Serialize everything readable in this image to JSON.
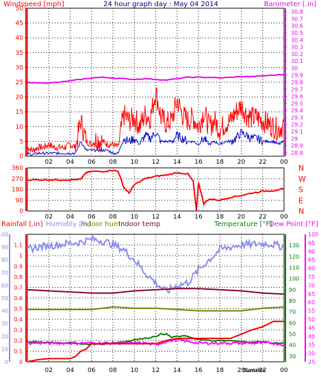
{
  "colors": {
    "wind": "#ff0000",
    "gust": "#ff0000",
    "avg_wind": "#0000cc",
    "barometer": "#ee00ee",
    "direction": "#ff0000",
    "rain_axis": "#ff0000",
    "humidity": "#8c8cf0",
    "indoor_hum": "#808000",
    "indoor_temp": "#8b0030",
    "temperature": "#008000",
    "dewpoint": "#ff00ff",
    "rainfall": "#ee0000",
    "sun": "#ffff99",
    "grid": "#000000",
    "title": "#000080"
  },
  "chart_data": [
    {
      "type": "line",
      "title": "24 hour graph day : May 04 2014",
      "xlabel": "",
      "ylabel": "Windspeed [mph]",
      "y2label": "Barometer [.in]",
      "x_ticks": [
        "02",
        "04",
        "06",
        "08",
        "10",
        "12",
        "14",
        "16",
        "18",
        "20",
        "22",
        "00"
      ],
      "ylim": [
        0,
        50
      ],
      "y_ticks": [
        "0",
        "5",
        "10",
        "15",
        "20",
        "25",
        "30",
        "35",
        "40",
        "45",
        "50"
      ],
      "y2lim": [
        28.75,
        30.85
      ],
      "y2_ticks": [
        "28.8",
        "28.9",
        "29",
        "29.1",
        "29.2",
        "29.3",
        "29.4",
        "29.5",
        "29.6",
        "29.7",
        "29.8",
        "29.9",
        "30",
        "30.1",
        "30.2",
        "30.3",
        "30.4",
        "30.5",
        "30.6",
        "30.7",
        "30.8"
      ],
      "series": [
        {
          "name": "Wind gust",
          "x": [
            0,
            0.5,
            1,
            1.5,
            2,
            2.5,
            3,
            3.5,
            4,
            4.5,
            5,
            5.5,
            6,
            6.5,
            7,
            7.5,
            8,
            8.5,
            9,
            9.5,
            10,
            10.5,
            11,
            11.5,
            12,
            12.5,
            13,
            13.5,
            14,
            14.5,
            15,
            15.5,
            16,
            16.5,
            17,
            17.5,
            18,
            18.5,
            19,
            19.5,
            20,
            20.5,
            21,
            21.5,
            22,
            22.5,
            23,
            23.5,
            24
          ],
          "values": [
            3,
            2,
            3,
            3,
            4,
            3,
            3,
            3,
            4,
            3,
            12,
            5,
            4,
            6,
            5,
            4,
            4,
            3,
            14,
            12,
            13,
            10,
            14,
            13,
            22,
            13,
            11,
            12,
            19,
            14,
            12,
            13,
            10,
            15,
            10,
            12,
            9,
            11,
            12,
            15,
            17,
            14,
            13,
            13,
            12,
            11,
            10,
            9,
            11
          ]
        },
        {
          "name": "Average wind",
          "x": [
            0,
            0.5,
            1,
            1.5,
            2,
            2.5,
            3,
            3.5,
            4,
            4.5,
            5,
            5.5,
            6,
            6.5,
            7,
            7.5,
            8,
            8.5,
            9,
            9.5,
            10,
            10.5,
            11,
            11.5,
            12,
            12.5,
            13,
            13.5,
            14,
            14.5,
            15,
            15.5,
            16,
            16.5,
            17,
            17.5,
            18,
            18.5,
            19,
            19.5,
            20,
            20.5,
            21,
            21.5,
            22,
            22.5,
            23,
            23.5,
            24
          ],
          "values": [
            1,
            0.5,
            1,
            1,
            1,
            1,
            1,
            1,
            1,
            1,
            5,
            2,
            2,
            2,
            2,
            2,
            1,
            1,
            6,
            5,
            6,
            4,
            7,
            6,
            8,
            5,
            5,
            5,
            7,
            6,
            5,
            5,
            4,
            6,
            4,
            5,
            4,
            5,
            5,
            6,
            8,
            7,
            6,
            6,
            5,
            5,
            5,
            4,
            5
          ]
        },
        {
          "name": "Barometer",
          "axis": "y2",
          "x": [
            0,
            1,
            2,
            3,
            4,
            5,
            6,
            7,
            8,
            9,
            10,
            11,
            12,
            13,
            14,
            15,
            16,
            17,
            18,
            19,
            20,
            21,
            22,
            23,
            24
          ],
          "values": [
            29.8,
            29.79,
            29.79,
            29.8,
            29.82,
            29.84,
            29.86,
            29.87,
            29.86,
            29.85,
            29.84,
            29.85,
            29.84,
            29.83,
            29.85,
            29.87,
            29.87,
            29.87,
            29.86,
            29.87,
            29.88,
            29.88,
            29.89,
            29.9,
            29.91
          ]
        }
      ]
    },
    {
      "type": "line",
      "title": "",
      "ylabel": "",
      "x_ticks": [
        "02",
        "04",
        "06",
        "08",
        "10",
        "12",
        "14",
        "16",
        "18",
        "20",
        "22",
        "00"
      ],
      "ylim": [
        0,
        360
      ],
      "y_ticks": [
        "0",
        "90",
        "180",
        "270",
        "360"
      ],
      "compass_labels": [
        "N",
        "W",
        "S",
        "E",
        "N"
      ],
      "series": [
        {
          "name": "Wind direction",
          "x": [
            0,
            1,
            2,
            3,
            4,
            5,
            5.5,
            6,
            7,
            8,
            8.5,
            9,
            9.5,
            10,
            11,
            12,
            13,
            14,
            15,
            15.5,
            15.8,
            16,
            16.5,
            17,
            18,
            19,
            20,
            21,
            22,
            23,
            24
          ],
          "values": [
            260,
            260,
            260,
            260,
            260,
            265,
            320,
            330,
            330,
            340,
            330,
            200,
            150,
            220,
            270,
            290,
            300,
            320,
            310,
            250,
            5,
            240,
            60,
            100,
            90,
            115,
            130,
            150,
            165,
            170,
            185
          ]
        }
      ]
    },
    {
      "type": "line",
      "title": "",
      "legend": [
        "Rainfall [.in]",
        "Humidity [%]",
        "Indoor hum",
        "Indoor temp",
        "Temperature [°F]",
        "Dew Point [°F]"
      ],
      "x_ticks": [
        "02",
        "04",
        "06",
        "08",
        "10",
        "12",
        "14",
        "16",
        "18",
        "20",
        "22",
        "00"
      ],
      "sun_labels": [
        "Sunset",
        "Sunrise"
      ],
      "rain_axis": {
        "ylim": [
          0,
          1.2
        ],
        "ticks": [
          "0",
          "0.1",
          "0.2",
          "0.3",
          "0.4",
          "0.5",
          "0.6",
          "0.7",
          "0.8",
          "0.9",
          "1",
          "1.1"
        ]
      },
      "humidity_axis": {
        "ylim": [
          0,
          100
        ],
        "ticks": [
          "0",
          "10",
          "20",
          "30",
          "40",
          "50",
          "60",
          "70",
          "80",
          "90",
          "100"
        ]
      },
      "temp_axis_right": {
        "ylim": [
          25,
          140
        ],
        "ticks": [
          "30",
          "40",
          "50",
          "60",
          "70",
          "80",
          "90",
          "100",
          "110",
          "120",
          "130"
        ]
      },
      "dew_axis_right": {
        "ylim": [
          25,
          100
        ],
        "ticks": [
          "25",
          "30",
          "35",
          "40",
          "45",
          "50",
          "55",
          "60",
          "65",
          "70",
          "75",
          "80",
          "85",
          "90",
          "95",
          "100"
        ]
      },
      "series": [
        {
          "name": "Humidity",
          "axis": "humidity",
          "x": [
            0,
            1,
            2,
            3,
            4,
            5,
            6,
            7,
            8,
            9,
            10,
            11,
            12,
            13,
            14,
            15,
            16,
            17,
            18,
            19,
            20,
            21,
            22,
            23,
            24
          ],
          "values": [
            88,
            90,
            91,
            92,
            93,
            94,
            96,
            95,
            92,
            88,
            80,
            70,
            62,
            55,
            60,
            62,
            72,
            80,
            88,
            90,
            92,
            92,
            93,
            92,
            90
          ]
        },
        {
          "name": "Indoor hum",
          "axis": "humidity",
          "x": [
            0,
            2,
            4,
            6,
            8,
            10,
            12,
            14,
            16,
            18,
            20,
            22,
            24
          ],
          "values": [
            41,
            41,
            41,
            41,
            43,
            42,
            42,
            41,
            40,
            40,
            40,
            42,
            43
          ]
        },
        {
          "name": "Indoor temp",
          "axis": "temp",
          "x": [
            0,
            2,
            4,
            6,
            8,
            10,
            12,
            14,
            16,
            18,
            20,
            22,
            24
          ],
          "values": [
            90,
            89,
            88,
            87,
            87,
            89,
            90,
            91,
            91,
            90,
            89,
            87,
            86
          ]
        },
        {
          "name": "Temperature",
          "axis": "temp",
          "x": [
            0,
            1,
            2,
            3,
            4,
            5,
            6,
            7,
            8,
            9,
            10,
            11,
            12,
            12.5,
            13,
            13.5,
            14,
            15,
            16,
            17,
            18,
            19,
            20,
            21,
            22,
            23,
            24
          ],
          "values": [
            43,
            43,
            42,
            42,
            42,
            41,
            41,
            41,
            42,
            43,
            45,
            46,
            48,
            50,
            50,
            47,
            48,
            48,
            45,
            44,
            44,
            44,
            43,
            43,
            43,
            42,
            42
          ]
        },
        {
          "name": "Dew Point",
          "axis": "dew",
          "x": [
            0,
            1,
            2,
            3,
            4,
            5,
            6,
            7,
            8,
            9,
            10,
            11,
            12,
            13,
            14,
            15,
            16,
            17,
            18,
            19,
            20,
            21,
            22,
            23,
            24
          ],
          "values": [
            36,
            36,
            36,
            36,
            36,
            36,
            36,
            36,
            36,
            36,
            36,
            36,
            35,
            37,
            38,
            37,
            36,
            36,
            36,
            36,
            36,
            36,
            36,
            36,
            35
          ]
        },
        {
          "name": "Rainfall",
          "axis": "rain",
          "x": [
            0,
            1,
            2,
            3,
            4,
            4.5,
            5,
            5.5,
            6,
            7,
            8,
            9,
            10,
            11,
            12,
            13,
            14,
            15,
            16,
            17,
            18,
            19,
            20,
            21,
            22,
            23,
            24
          ],
          "values": [
            0,
            0.02,
            0.03,
            0.03,
            0.03,
            0.05,
            0.1,
            0.12,
            0.17,
            0.17,
            0.17,
            0.17,
            0.17,
            0.17,
            0.17,
            0.2,
            0.22,
            0.22,
            0.22,
            0.22,
            0.22,
            0.22,
            0.26,
            0.3,
            0.33,
            0.38,
            0.38
          ]
        }
      ]
    }
  ]
}
